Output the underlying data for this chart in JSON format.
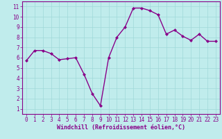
{
  "x": [
    0,
    1,
    2,
    3,
    4,
    5,
    6,
    7,
    8,
    9,
    10,
    11,
    12,
    13,
    14,
    15,
    16,
    17,
    18,
    19,
    20,
    21,
    22,
    23
  ],
  "y": [
    5.7,
    6.7,
    6.7,
    6.4,
    5.8,
    5.9,
    6.0,
    4.4,
    2.5,
    1.3,
    6.0,
    8.0,
    9.0,
    10.85,
    10.85,
    10.6,
    10.2,
    8.3,
    8.7,
    8.1,
    7.7,
    8.3,
    7.6,
    7.6
  ],
  "line_color": "#880088",
  "marker": "D",
  "marker_size": 2.0,
  "bg_color": "#c0ecec",
  "grid_color": "#a0d8d8",
  "xlabel": "Windchill (Refroidissement éolien,°C)",
  "xlabel_color": "#880088",
  "tick_color": "#880088",
  "ylim_min": 0.5,
  "ylim_max": 11.5,
  "xlim_min": -0.5,
  "xlim_max": 23.5,
  "yticks": [
    1,
    2,
    3,
    4,
    5,
    6,
    7,
    8,
    9,
    10,
    11
  ],
  "xticks": [
    0,
    1,
    2,
    3,
    4,
    5,
    6,
    7,
    8,
    9,
    10,
    11,
    12,
    13,
    14,
    15,
    16,
    17,
    18,
    19,
    20,
    21,
    22,
    23
  ],
  "spine_color": "#880088",
  "tick_fontsize": 5.5,
  "xlabel_fontsize": 6.0,
  "linewidth": 1.0
}
